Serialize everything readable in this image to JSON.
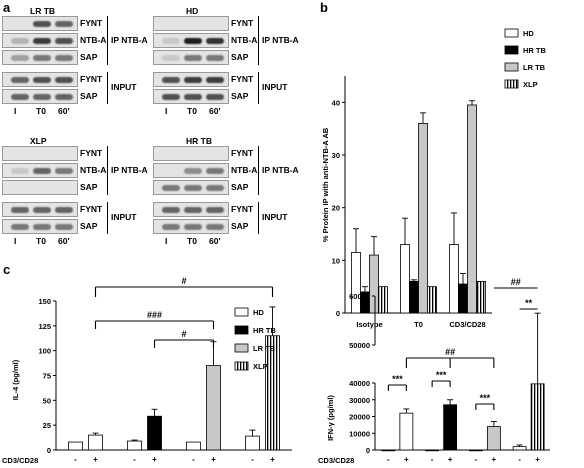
{
  "panel_labels": {
    "a": "a",
    "b": "b",
    "c": "c"
  },
  "blots": [
    {
      "id": "lrtb",
      "title": "LR TB",
      "ip_rows": [
        "FYNT",
        "NTB-A",
        "SAP"
      ],
      "input_rows": [
        "FYNT",
        "SAP"
      ],
      "ip_label": "IP NTB-A",
      "input_label": "INPUT",
      "lanes": [
        "I",
        "T0",
        "60'"
      ]
    },
    {
      "id": "hd",
      "title": "HD",
      "ip_rows": [
        "FYNT",
        "NTB-A",
        "SAP"
      ],
      "input_rows": [
        "FYNT",
        "SAP"
      ],
      "ip_label": "IP NTB-A",
      "input_label": "INPUT",
      "lanes": [
        "I",
        "T0",
        "60'"
      ]
    },
    {
      "id": "xlp",
      "title": "XLP",
      "ip_rows": [
        "FYNT",
        "NTB-A",
        "SAP"
      ],
      "input_rows": [
        "FYNT",
        "SAP"
      ],
      "ip_label": "IP NTB-A",
      "input_label": "INPUT",
      "lanes": [
        "I",
        "T0",
        "60'"
      ]
    },
    {
      "id": "hrtb",
      "title": "HR TB",
      "ip_rows": [
        "FYNT",
        "NTB-A",
        "SAP"
      ],
      "input_rows": [
        "FYNT",
        "SAP"
      ],
      "ip_label": "IP NTB-A",
      "input_label": "INPUT",
      "lanes": [
        "I",
        "T0",
        "60'"
      ]
    }
  ],
  "colors": {
    "HD": "#ffffff",
    "HR TB": "#000000",
    "LR TB": "#c8c8c8",
    "XLP": "hatched-vertical"
  },
  "chart_data": [
    {
      "id": "b",
      "type": "bar",
      "ylabel": "% Protein IP with anti-NTB-A AB",
      "categories": [
        "Isotype",
        "T0",
        "CD3/CD28"
      ],
      "ylim": [
        0,
        45
      ],
      "yticks": [
        0,
        10,
        20,
        30,
        40
      ],
      "series": [
        {
          "name": "HD",
          "values": [
            11.5,
            13,
            13
          ],
          "errors": [
            4.5,
            5,
            6
          ]
        },
        {
          "name": "HR TB",
          "values": [
            4,
            6,
            5.5
          ],
          "errors": [
            1,
            0.3,
            2
          ]
        },
        {
          "name": "LR TB",
          "values": [
            11,
            36,
            39.5
          ],
          "errors": [
            3.5,
            2,
            0.8
          ]
        },
        {
          "name": "XLP",
          "values": [
            5,
            5,
            6
          ],
          "errors": [
            0,
            0,
            0
          ]
        }
      ],
      "legend": [
        "HD",
        "HR TB",
        "LR TB",
        "XLP"
      ]
    },
    {
      "id": "c-left",
      "type": "bar",
      "ylabel": "IL-4 (pg/ml)",
      "xlabel": "CD3/CD28",
      "groups": [
        "HD",
        "HR TB",
        "LR TB",
        "XLP"
      ],
      "conditions": [
        "-",
        "+"
      ],
      "ylim": [
        0,
        150
      ],
      "yticks": [
        0,
        25,
        50,
        75,
        100,
        125,
        150
      ],
      "values": [
        [
          8,
          15
        ],
        [
          9,
          34
        ],
        [
          8,
          85
        ],
        [
          14,
          115
        ]
      ],
      "errors": [
        [
          0,
          2
        ],
        [
          1,
          7
        ],
        [
          0,
          24
        ],
        [
          6,
          29
        ]
      ],
      "significance": [
        "#",
        "###",
        "#"
      ],
      "legend": [
        "HD",
        "HR TB",
        "LR TB",
        "XLP"
      ]
    },
    {
      "id": "c-right",
      "type": "bar",
      "ylabel": "IFN-γ (pg/ml)",
      "xlabel": "CD3/CD28",
      "groups": [
        "HD",
        "HR TB",
        "LR TB",
        "XLP"
      ],
      "conditions": [
        "-",
        "+"
      ],
      "ylim": [
        0,
        60000
      ],
      "axis_break": [
        40000,
        50000
      ],
      "yticks": [
        0,
        10000,
        20000,
        30000,
        40000,
        50000,
        60000
      ],
      "values": [
        [
          0,
          22000
        ],
        [
          0,
          27000
        ],
        [
          0,
          14000
        ],
        [
          2000,
          39500
        ]
      ],
      "errors": [
        [
          0,
          2500
        ],
        [
          0,
          3000
        ],
        [
          0,
          3000
        ],
        [
          1000,
          17000
        ]
      ],
      "significance": [
        "***",
        "***",
        "***",
        "##",
        "##",
        "**"
      ]
    }
  ],
  "tick_minus": "-",
  "tick_plus": "+"
}
